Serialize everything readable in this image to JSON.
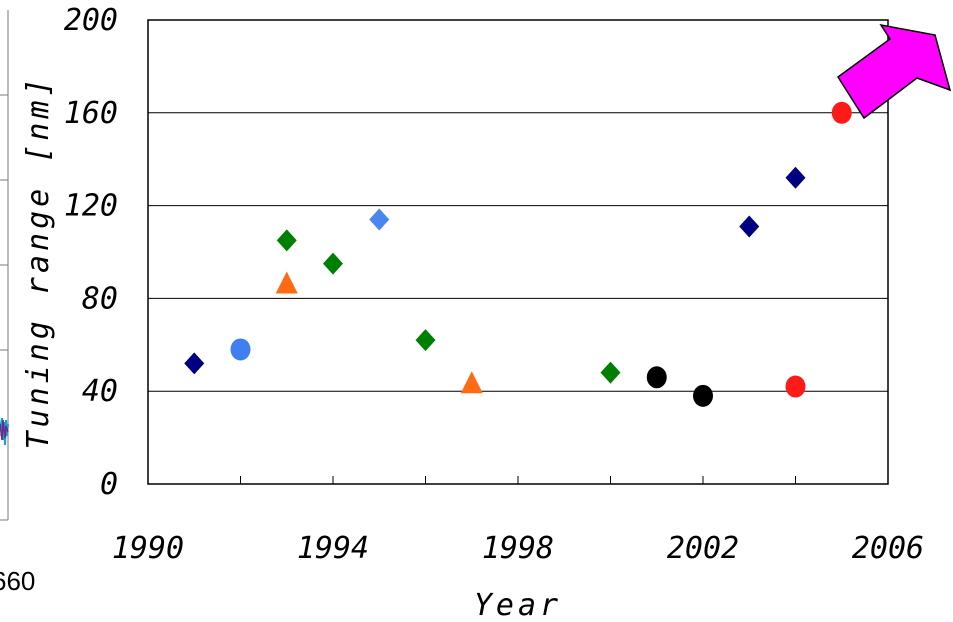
{
  "chart_data": {
    "type": "scatter",
    "title": "",
    "xlabel": "Year",
    "ylabel": "Tuning range [nm]",
    "xlim": [
      1990,
      2006
    ],
    "ylim": [
      0,
      200
    ],
    "x_ticks": [
      "1990",
      "1994",
      "1998",
      "2002",
      "2006"
    ],
    "y_ticks": [
      "0",
      "40",
      "80",
      "120",
      "160",
      "200"
    ],
    "grid": "horizontal",
    "legend": "none",
    "series": [
      {
        "marker": "diamond",
        "color": "#000080",
        "points": [
          [
            1991,
            52
          ],
          [
            2003,
            111
          ],
          [
            2004,
            132
          ]
        ]
      },
      {
        "marker": "circle",
        "color": "#3f7ff0",
        "points": [
          [
            1992,
            58
          ]
        ]
      },
      {
        "marker": "diamond",
        "color": "#008000",
        "points": [
          [
            1993,
            105
          ],
          [
            1994,
            95
          ],
          [
            1996,
            62
          ],
          [
            2000,
            48
          ]
        ]
      },
      {
        "marker": "triangle",
        "color": "#ff6a13",
        "points": [
          [
            1993,
            86
          ],
          [
            1997,
            43
          ]
        ]
      },
      {
        "marker": "diamond",
        "color": "#4a86f0",
        "points": [
          [
            1995,
            114
          ]
        ]
      },
      {
        "marker": "circle",
        "color": "#000000",
        "points": [
          [
            2001,
            46
          ],
          [
            2002,
            38
          ]
        ]
      },
      {
        "marker": "circle",
        "color": "#ff1a1a",
        "points": [
          [
            2004,
            42
          ],
          [
            2005,
            160
          ]
        ]
      }
    ],
    "annotations": [
      {
        "kind": "arrow",
        "direction": "up-right",
        "fill": "#ff00ff"
      }
    ]
  },
  "left_fragment": {
    "text": "660"
  }
}
